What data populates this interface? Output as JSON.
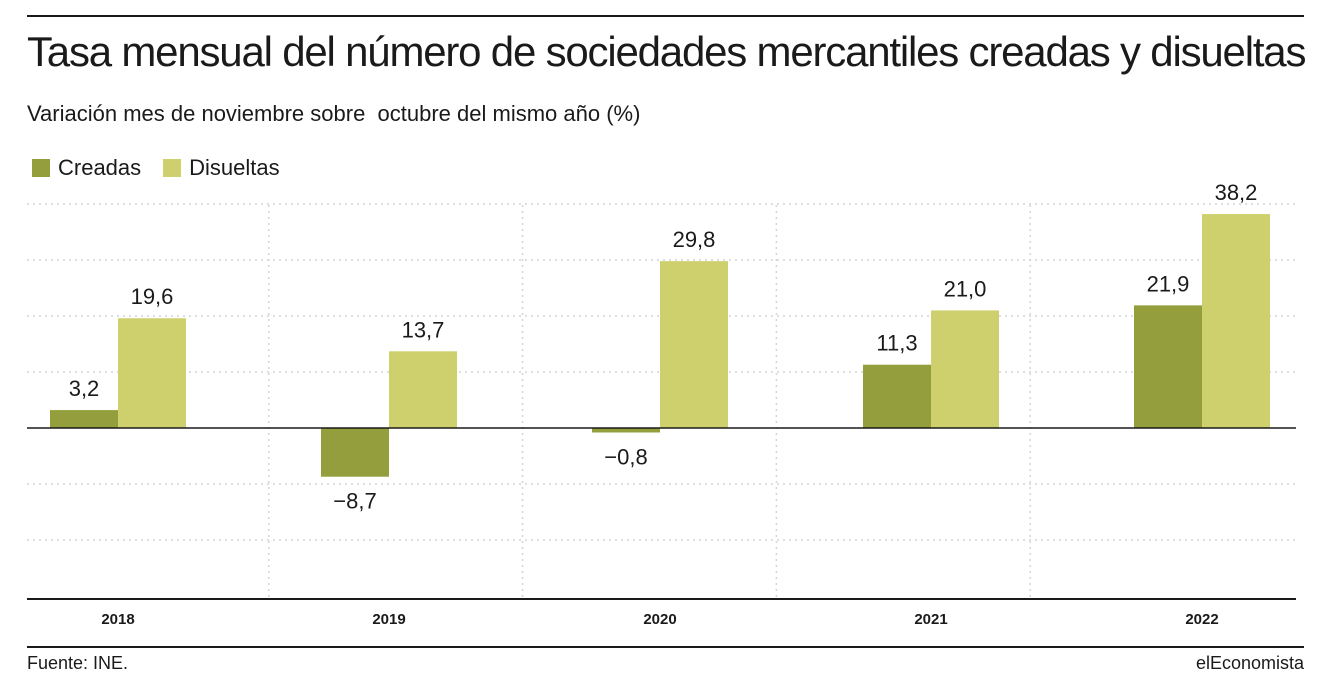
{
  "title": "Tasa mensual del número de sociedades mercantiles creadas y disueltas",
  "subtitle": "Variación mes de noviembre sobre  octubre del mismo año (%)",
  "source": "Fuente: INE.",
  "brand": "elEconomista",
  "colors": {
    "creadas": "#949e3c",
    "disueltas": "#ced06d"
  },
  "chart_data": {
    "type": "bar",
    "categories": [
      "2018",
      "2019",
      "2020",
      "2021",
      "2022"
    ],
    "series": [
      {
        "name": "Creadas",
        "values": [
          3.2,
          -8.7,
          -0.8,
          11.3,
          21.9
        ],
        "labels": [
          "3,2",
          "−8,7",
          "−0,8",
          "11,3",
          "21,9"
        ]
      },
      {
        "name": "Disueltas",
        "values": [
          19.6,
          13.7,
          29.8,
          21.0,
          38.2
        ],
        "labels": [
          "19,6",
          "13,7",
          "29,8",
          "21,0",
          "38,2"
        ]
      }
    ],
    "ylim": [
      -30,
      45
    ],
    "grid": true,
    "legend_position": "top-left"
  }
}
